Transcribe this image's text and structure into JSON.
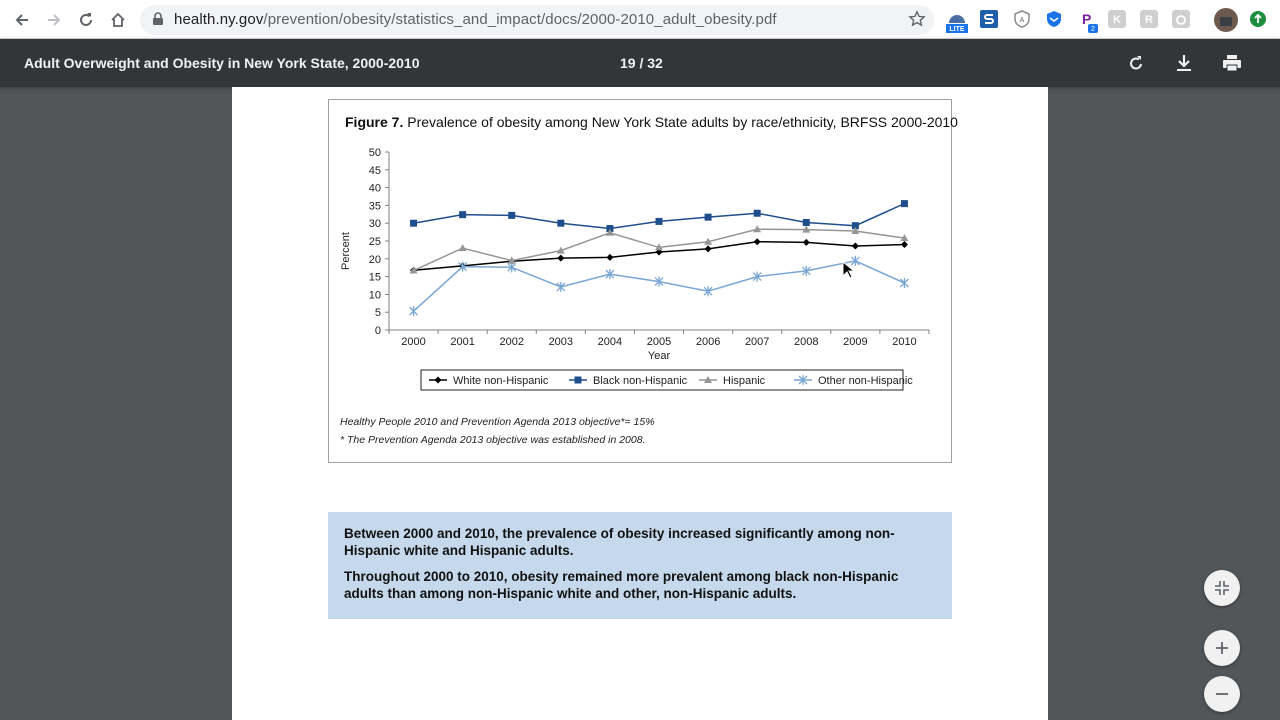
{
  "browser": {
    "url_host": "health.ny.gov",
    "url_path": "/prevention/obesity/statistics_and_impact/docs/2000-2010_adult_obesity.pdf",
    "extensions": [
      "lite-extension-icon",
      "s-extension-icon",
      "shield-extension-icon",
      "privacy-badger-icon",
      "p-extension-icon",
      "k-extension-icon",
      "r-extension-icon",
      "g-extension-icon"
    ],
    "lite_badge": "LITE",
    "p_badge": "2"
  },
  "pdf": {
    "title": "Adult Overweight and Obesity in New York State, 2000-2010",
    "page_indicator": "19 / 32"
  },
  "figure": {
    "label": "Figure 7.",
    "caption": "Prevalence of obesity among New York State adults by race/ethnicity, BRFSS 2000-2010",
    "footnote1": "Healthy People 2010 and Prevention Agenda 2013 objective*= 15%",
    "footnote2": "* The Prevention Agenda 2013 objective was established in 2008."
  },
  "summary": {
    "p1": "Between 2000 and 2010, the prevalence of obesity increased significantly among non-Hispanic white and Hispanic adults.",
    "p2": "Throughout 2000 to 2010, obesity remained more prevalent among black non-Hispanic adults than among non-Hispanic white and other, non-Hispanic adults."
  },
  "chart_data": {
    "type": "line",
    "title": "",
    "xlabel": "Year",
    "ylabel": "Percent",
    "ylim": [
      0,
      50
    ],
    "yticks": [
      0,
      5,
      10,
      15,
      20,
      25,
      30,
      35,
      40,
      45,
      50
    ],
    "categories": [
      "2000",
      "2001",
      "2002",
      "2003",
      "2004",
      "2005",
      "2006",
      "2007",
      "2008",
      "2009",
      "2010"
    ],
    "legend_position": "bottom",
    "grid": false,
    "series": [
      {
        "name": "White non-Hispanic",
        "color": "#000000",
        "marker": "diamond",
        "values": [
          16.8,
          18.0,
          19.3,
          20.2,
          20.4,
          21.9,
          22.8,
          24.8,
          24.6,
          23.6,
          24.0
        ]
      },
      {
        "name": "Black non-Hispanic",
        "color": "#1f4e8c",
        "marker": "square",
        "values": [
          30.0,
          32.4,
          32.2,
          30.0,
          28.5,
          30.5,
          31.7,
          32.8,
          30.2,
          29.3,
          35.5
        ]
      },
      {
        "name": "Hispanic",
        "color": "#969696",
        "marker": "triangle",
        "values": [
          16.7,
          23.0,
          19.5,
          22.3,
          27.3,
          23.2,
          24.8,
          28.3,
          28.2,
          27.8,
          25.8
        ]
      },
      {
        "name": "Other non-Hispanic",
        "color": "#7aa6d4",
        "marker": "star",
        "values": [
          5.3,
          17.8,
          17.6,
          12.1,
          15.7,
          13.6,
          10.9,
          15.0,
          16.6,
          19.4,
          13.2
        ]
      }
    ]
  }
}
